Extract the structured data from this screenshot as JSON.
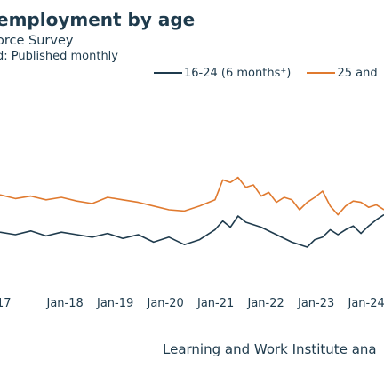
{
  "header": {
    "title": "employment by age",
    "subtitle": "orce Survey",
    "note": "d: Published monthly"
  },
  "source": "Learning and Work Institute ana",
  "colors": {
    "series1": "#1f3b4d",
    "series2": "#e07a2f"
  },
  "chart_data": {
    "type": "line",
    "title": "employment by age",
    "xlabel": "",
    "ylabel": "",
    "xticks": [
      "17",
      "Jan-18",
      "Jan-19",
      "Jan-20",
      "Jan-21",
      "Jan-22",
      "Jan-23",
      "Jan-24",
      "J"
    ],
    "xlim": [
      0,
      100
    ],
    "ylim": [
      0,
      100
    ],
    "grid": false,
    "legend_position": "top",
    "series": [
      {
        "name": "16-24 (6 months⁺)",
        "color": "#1f3b4d",
        "points": [
          [
            0,
            42
          ],
          [
            4,
            40
          ],
          [
            8,
            43
          ],
          [
            12,
            39
          ],
          [
            16,
            42
          ],
          [
            20,
            40
          ],
          [
            24,
            38
          ],
          [
            28,
            41
          ],
          [
            32,
            37
          ],
          [
            36,
            40
          ],
          [
            40,
            34
          ],
          [
            44,
            38
          ],
          [
            48,
            32
          ],
          [
            52,
            36
          ],
          [
            56,
            44
          ],
          [
            58,
            51
          ],
          [
            60,
            46
          ],
          [
            62,
            55
          ],
          [
            64,
            50
          ],
          [
            68,
            46
          ],
          [
            72,
            40
          ],
          [
            76,
            34
          ],
          [
            80,
            30
          ],
          [
            82,
            36
          ],
          [
            84,
            38
          ],
          [
            86,
            44
          ],
          [
            88,
            40
          ],
          [
            90,
            44
          ],
          [
            92,
            47
          ],
          [
            94,
            41
          ],
          [
            96,
            47
          ],
          [
            98,
            52
          ],
          [
            100,
            56
          ]
        ]
      },
      {
        "name": "25 and",
        "color": "#e07a2f",
        "points": [
          [
            0,
            72
          ],
          [
            4,
            69
          ],
          [
            8,
            71
          ],
          [
            12,
            68
          ],
          [
            16,
            70
          ],
          [
            20,
            67
          ],
          [
            24,
            65
          ],
          [
            28,
            70
          ],
          [
            32,
            68
          ],
          [
            36,
            66
          ],
          [
            40,
            63
          ],
          [
            44,
            60
          ],
          [
            48,
            59
          ],
          [
            52,
            63
          ],
          [
            56,
            68
          ],
          [
            58,
            84
          ],
          [
            60,
            82
          ],
          [
            62,
            86
          ],
          [
            64,
            78
          ],
          [
            66,
            80
          ],
          [
            68,
            71
          ],
          [
            70,
            74
          ],
          [
            72,
            66
          ],
          [
            74,
            70
          ],
          [
            76,
            68
          ],
          [
            78,
            60
          ],
          [
            80,
            66
          ],
          [
            82,
            70
          ],
          [
            84,
            75
          ],
          [
            86,
            63
          ],
          [
            88,
            56
          ],
          [
            90,
            63
          ],
          [
            92,
            67
          ],
          [
            94,
            66
          ],
          [
            96,
            62
          ],
          [
            98,
            64
          ],
          [
            100,
            60
          ]
        ]
      }
    ]
  }
}
